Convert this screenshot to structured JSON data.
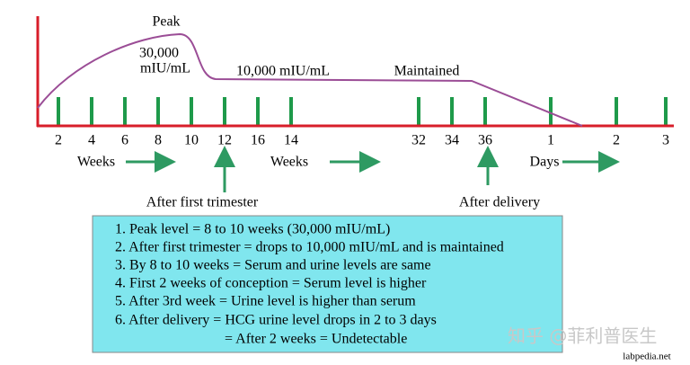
{
  "annotations": {
    "peak": "Peak",
    "peak_value": "30,000",
    "peak_unit": "mIU/mL",
    "plateau": "10,000 mIU/mL",
    "maintained": "Maintained"
  },
  "tick_labels": [
    "2",
    "4",
    "6",
    "8",
    "10",
    "12",
    "16",
    "14",
    "32",
    "34",
    "36",
    "1",
    "2",
    "3"
  ],
  "units": [
    "Weeks",
    "Weeks",
    "Days"
  ],
  "markers": [
    "After first trimester",
    "After delivery"
  ],
  "notes": [
    "1. Peak level = 8 to 10 weeks (30,000 mIU/mL)",
    "2. After first trimester = drops to 10,000 mIU/mL and is maintained",
    "3. By 8 to 10 weeks = Serum and urine levels are same",
    "4. First 2 weeks of conception = Serum level is higher",
    "5. After 3rd week = Urine level is higher than serum",
    "6. After delivery = HCG urine level drops in 2 to 3 days",
    "= After 2 weeks = Undetectable"
  ],
  "watermark": "知乎 @菲利普医生",
  "source": "labpedia.net"
}
